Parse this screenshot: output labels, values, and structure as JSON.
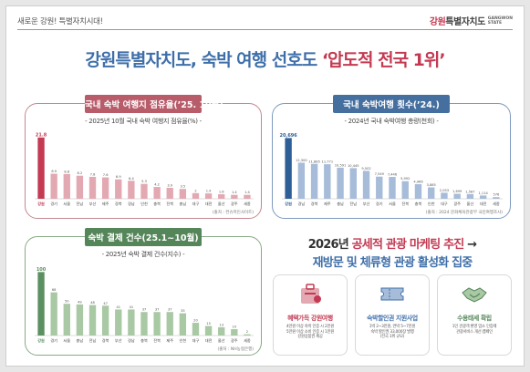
{
  "header": {
    "slogan": "새로운 강원! 특별자치시대!",
    "brand_prefix": "강원",
    "brand_suffix": "특별자치도",
    "brand_en_1": "GANGWON",
    "brand_en_2": "STATE"
  },
  "headline": {
    "prefix": "강원특별자치도, 숙박 여행 선호도 ",
    "highlight": "‘압도적 전국 1위’"
  },
  "colors": {
    "red": "#c33a52",
    "blue": "#3f6fa9",
    "green": "#55865a"
  },
  "panel1": {
    "tag": "국내 숙박 여행지 점유율(’25. 10월)",
    "subtitle": "- 2025년 10월 국내 숙박 여행지 점유율(%) -",
    "source": "(출처 : 컨슈머인사이트)"
  },
  "panel2": {
    "tag": "국내 숙박여행 횟수(’24.)",
    "subtitle": "- 2024년 국내 숙박여행 총량(천회) -",
    "source": "(출처 : 2024 문화체육관광부 국민여행조사)"
  },
  "panel3": {
    "tag": "숙박 결제 건수(25.1~10월)",
    "subtitle": "- 2025년 숙박 결제 건수(지수) -",
    "source": "(출처 : NH농협은행)"
  },
  "chart_data": [
    {
      "type": "bar",
      "categories": [
        "강원",
        "경기",
        "서울",
        "전남",
        "부산",
        "제주",
        "경북",
        "경남",
        "인천",
        "충북",
        "전북",
        "충남",
        "대구",
        "대전",
        "울산",
        "광주",
        "세종"
      ],
      "values": [
        21.8,
        8.9,
        8.8,
        8.2,
        7.8,
        7.6,
        6.9,
        6.4,
        5.3,
        4.2,
        3.9,
        3.5,
        2,
        1.9,
        1.6,
        1.4,
        1.4
      ],
      "value_labels": [
        "21.8",
        "8.9",
        "8.8",
        "8.2",
        "7.8",
        "7.6",
        "6.9",
        "6.4",
        "5.3",
        "4.2",
        "3.9",
        "3.5",
        "2",
        "1.9",
        "1.6",
        "1.4",
        "1.4"
      ],
      "highlight_index": 0,
      "highlight_color": "#c33a52",
      "base_color": "#e3a9b2",
      "ylim": [
        0,
        24
      ]
    },
    {
      "type": "bar",
      "categories": [
        "강원",
        "경남",
        "경북",
        "제주",
        "충남",
        "전남",
        "부산",
        "경기",
        "서울",
        "전북",
        "충북",
        "인천",
        "대구",
        "광주",
        "울산",
        "대전",
        "세종"
      ],
      "values": [
        20696,
        12300,
        11885,
        11771,
        10591,
        10445,
        9502,
        7549,
        7446,
        5992,
        4966,
        3885,
        2053,
        1699,
        1587,
        1114,
        576
      ],
      "value_labels": [
        "20,696",
        "12,300",
        "11,885",
        "11,771",
        "10,591",
        "10,445",
        "9,502",
        "7,549",
        "7,446",
        "5,992",
        "4,966",
        "3,885",
        "2,053",
        "1,699",
        "1,587",
        "1,114",
        "576"
      ],
      "highlight_index": 0,
      "highlight_color": "#2f5f97",
      "base_color": "#a6bcd8",
      "ylim": [
        0,
        23000
      ]
    },
    {
      "type": "bar",
      "categories": [
        "강원",
        "경기",
        "서울",
        "충남",
        "전남",
        "경북",
        "부산",
        "경남",
        "충북",
        "전북",
        "제주",
        "인천",
        "대구",
        "대전",
        "울산",
        "광주",
        "세종"
      ],
      "values": [
        100,
        68,
        50,
        49,
        48,
        47,
        41,
        41,
        37,
        37,
        37,
        35,
        20,
        15,
        13,
        10,
        2
      ],
      "value_labels": [
        "100",
        "68",
        "50",
        "49",
        "48",
        "47",
        "41",
        "41",
        "37",
        "37",
        "37",
        "35",
        "20",
        "15",
        "13",
        "10",
        "2"
      ],
      "highlight_index": 0,
      "highlight_color": "#5c9062",
      "base_color": "#a9c8a4",
      "ylim": [
        0,
        112
      ]
    }
  ],
  "promo": {
    "line1_prefix": "2026년 ",
    "line1_red": "공세적 관광 마케팅 추진",
    "line1_arrow": " →",
    "line2": "재방문 및 체류형 관광 활성화 집중"
  },
  "cards": [
    {
      "title": "혜택가득 강원여행",
      "icon": "suitcase-icon",
      "lines": [
        "4만원 이상 숙박 인증 시 2만원",
        "5만원 이상 소비 인증 시 1만원",
        "강원상품권 제공"
      ]
    },
    {
      "title": "숙박할인권 지원사업",
      "icon": "ticket-icon",
      "lines": [
        "1박 2~3만원, 연박 5~7만원",
        "숙박 할인권 33,000장 발행",
        "(전국 1위 규모)"
      ]
    },
    {
      "title": "수용태세 확립",
      "icon": "handshake-icon",
      "lines": [
        "1인 관광객 환영 업소 인증제",
        "관광서비스 개선 캠페인"
      ]
    }
  ]
}
